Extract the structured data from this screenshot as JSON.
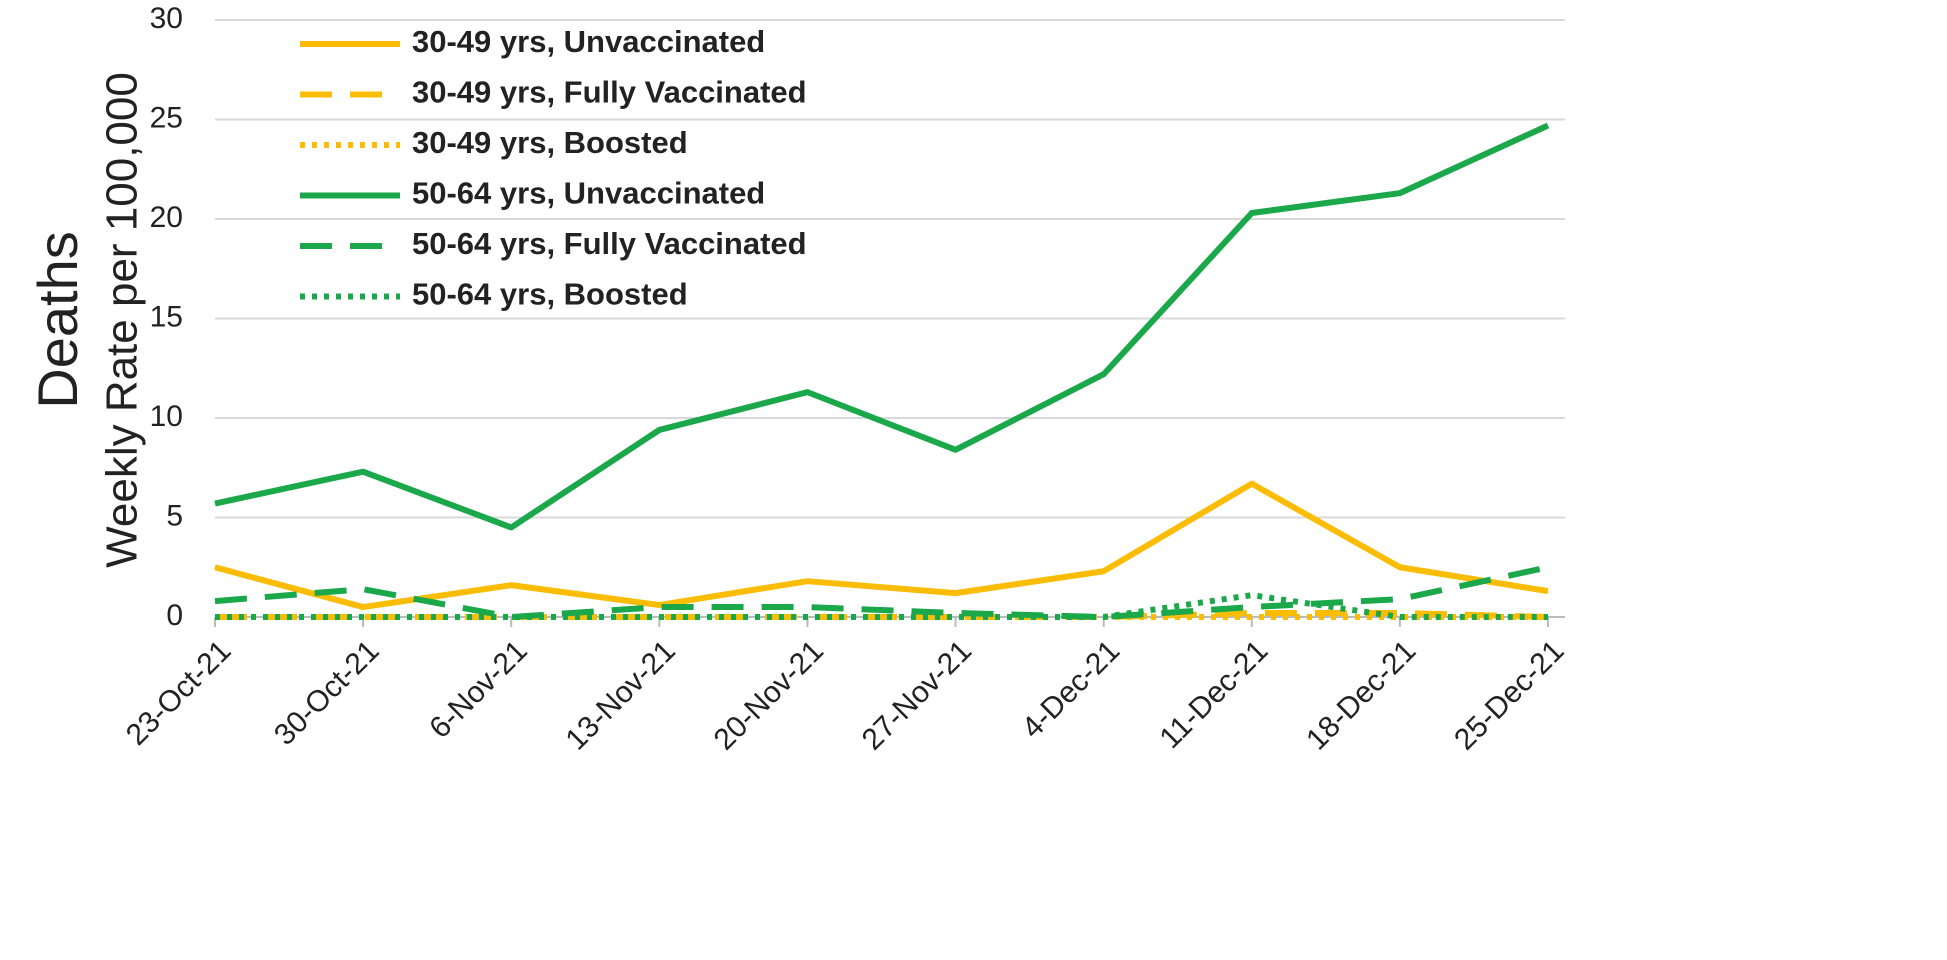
{
  "chart_data": {
    "type": "line",
    "y_title": "Deaths",
    "y_subtitle": "Weekly Rate per 100,000",
    "categories": [
      "23-Oct-21",
      "30-Oct-21",
      "6-Nov-21",
      "13-Nov-21",
      "20-Nov-21",
      "27-Nov-21",
      "4-Dec-21",
      "11-Dec-21",
      "18-Dec-21",
      "25-Dec-21"
    ],
    "series": [
      {
        "name": "30-49 yrs, Unvaccinated",
        "color": "#fbbc04",
        "dash": "solid",
        "values": [
          2.5,
          0.5,
          1.6,
          0.6,
          1.8,
          1.2,
          2.3,
          6.7,
          2.5,
          1.3
        ]
      },
      {
        "name": "30-49 yrs, Fully Vaccinated",
        "color": "#fbbc04",
        "dash": "dashed",
        "values": [
          0,
          0,
          0,
          0,
          0,
          0,
          0,
          0.2,
          0.2,
          0
        ]
      },
      {
        "name": "30-49 yrs, Boosted",
        "color": "#fbbc04",
        "dash": "dotted",
        "values": [
          0,
          0,
          0,
          0,
          0,
          0,
          0,
          0,
          0,
          0
        ]
      },
      {
        "name": "50-64 yrs, Unvaccinated",
        "color": "#1aa84a",
        "dash": "solid",
        "values": [
          5.7,
          7.3,
          4.5,
          9.4,
          11.3,
          8.4,
          12.2,
          20.3,
          21.3,
          24.7
        ]
      },
      {
        "name": "50-64 yrs, Fully Vaccinated",
        "color": "#1aa84a",
        "dash": "dashed",
        "values": [
          0.8,
          1.4,
          0,
          0.5,
          0.5,
          0.2,
          0,
          0.5,
          0.9,
          2.5
        ]
      },
      {
        "name": "50-64 yrs, Boosted",
        "color": "#1aa84a",
        "dash": "dotted",
        "values": [
          0,
          0,
          0,
          0,
          0,
          0,
          0,
          1.1,
          0,
          0
        ]
      }
    ],
    "ylim": [
      0,
      30
    ],
    "yticks": [
      0,
      5,
      10,
      15,
      20,
      25,
      30
    ],
    "grid": true,
    "legend": "top-left"
  }
}
